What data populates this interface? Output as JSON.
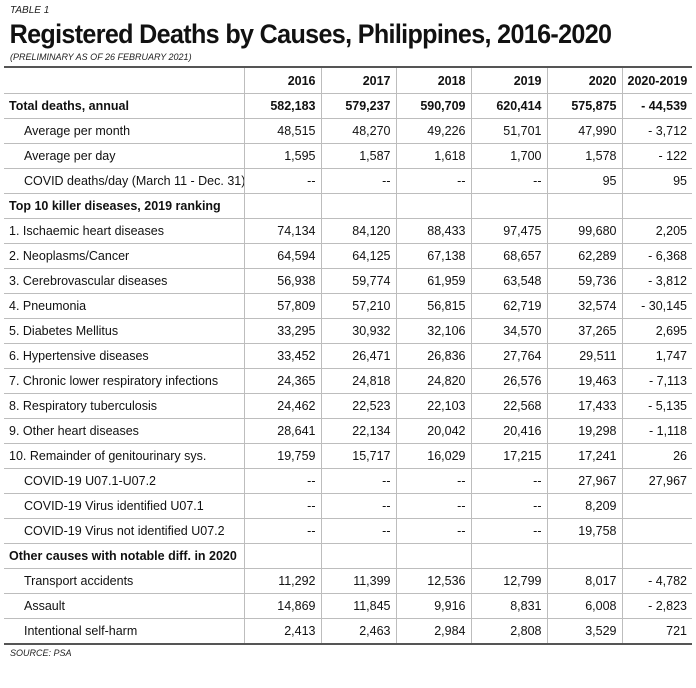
{
  "table_label": "TABLE 1",
  "title": "Registered Deaths by Causes, Philippines, 2016-2020",
  "subtitle": "(PRELIMINARY AS OF 26 FEBRUARY 2021)",
  "columns": [
    "",
    "2016",
    "2017",
    "2018",
    "2019",
    "2020",
    "2020-2019"
  ],
  "rows": [
    {
      "style": "bold",
      "indent": false,
      "cells": [
        "Total deaths, annual",
        "582,183",
        "579,237",
        "590,709",
        "620,414",
        "575,875",
        "- 44,539"
      ]
    },
    {
      "style": "",
      "indent": true,
      "cells": [
        "Average per month",
        "48,515",
        "48,270",
        "49,226",
        "51,701",
        "47,990",
        "- 3,712"
      ]
    },
    {
      "style": "",
      "indent": true,
      "cells": [
        "Average per day",
        "1,595",
        "1,587",
        "1,618",
        "1,700",
        "1,578",
        "- 122"
      ]
    },
    {
      "style": "",
      "indent": true,
      "cells": [
        "COVID deaths/day (March 11 - Dec. 31)",
        "--",
        "--",
        "--",
        "--",
        "95",
        "95"
      ]
    },
    {
      "style": "section",
      "indent": false,
      "cells": [
        "Top 10 killer diseases, 2019 ranking",
        "",
        "",
        "",
        "",
        "",
        ""
      ]
    },
    {
      "style": "",
      "indent": false,
      "cells": [
        "1. Ischaemic heart diseases",
        "74,134",
        "84,120",
        "88,433",
        "97,475",
        "99,680",
        "2,205"
      ]
    },
    {
      "style": "",
      "indent": false,
      "cells": [
        "2. Neoplasms/Cancer",
        "64,594",
        "64,125",
        "67,138",
        "68,657",
        "62,289",
        "- 6,368"
      ]
    },
    {
      "style": "",
      "indent": false,
      "cells": [
        "3. Cerebrovascular diseases",
        "56,938",
        "59,774",
        "61,959",
        "63,548",
        "59,736",
        "- 3,812"
      ]
    },
    {
      "style": "",
      "indent": false,
      "cells": [
        "4. Pneumonia",
        "57,809",
        "57,210",
        "56,815",
        "62,719",
        "32,574",
        "- 30,145"
      ]
    },
    {
      "style": "",
      "indent": false,
      "cells": [
        "5. Diabetes Mellitus",
        "33,295",
        "30,932",
        "32,106",
        "34,570",
        "37,265",
        "2,695"
      ]
    },
    {
      "style": "",
      "indent": false,
      "cells": [
        "6. Hypertensive diseases",
        "33,452",
        "26,471",
        "26,836",
        "27,764",
        "29,511",
        "1,747"
      ]
    },
    {
      "style": "",
      "indent": false,
      "cells": [
        "7. Chronic lower respiratory infections",
        "24,365",
        "24,818",
        "24,820",
        "26,576",
        "19,463",
        "- 7,113"
      ]
    },
    {
      "style": "",
      "indent": false,
      "cells": [
        "8. Respiratory tuberculosis",
        "24,462",
        "22,523",
        "22,103",
        "22,568",
        "17,433",
        "- 5,135"
      ]
    },
    {
      "style": "",
      "indent": false,
      "cells": [
        "9. Other heart diseases",
        "28,641",
        "22,134",
        "20,042",
        "20,416",
        "19,298",
        "- 1,118"
      ]
    },
    {
      "style": "",
      "indent": false,
      "cells": [
        "10. Remainder of genitourinary sys.",
        "19,759",
        "15,717",
        "16,029",
        "17,215",
        "17,241",
        "26"
      ]
    },
    {
      "style": "",
      "indent": true,
      "cells": [
        "COVID-19 U07.1-U07.2",
        "--",
        "--",
        "--",
        "--",
        "27,967",
        "27,967"
      ]
    },
    {
      "style": "",
      "indent": true,
      "cells": [
        "COVID-19 Virus identified U07.1",
        "--",
        "--",
        "--",
        "--",
        "8,209",
        ""
      ]
    },
    {
      "style": "",
      "indent": true,
      "cells": [
        "COVID-19 Virus not identified U07.2",
        "--",
        "--",
        "--",
        "--",
        "19,758",
        ""
      ]
    },
    {
      "style": "section",
      "indent": false,
      "cells": [
        "Other causes with notable diff. in 2020",
        "",
        "",
        "",
        "",
        "",
        ""
      ]
    },
    {
      "style": "",
      "indent": true,
      "cells": [
        "Transport accidents",
        "11,292",
        "11,399",
        "12,536",
        "12,799",
        "8,017",
        "- 4,782"
      ]
    },
    {
      "style": "",
      "indent": true,
      "cells": [
        "Assault",
        "14,869",
        "11,845",
        "9,916",
        "8,831",
        "6,008",
        "- 2,823"
      ]
    },
    {
      "style": "",
      "indent": true,
      "cells": [
        "Intentional self-harm",
        "2,413",
        "2,463",
        "2,984",
        "2,808",
        "3,529",
        "721"
      ]
    }
  ],
  "source": "SOURCE: PSA"
}
